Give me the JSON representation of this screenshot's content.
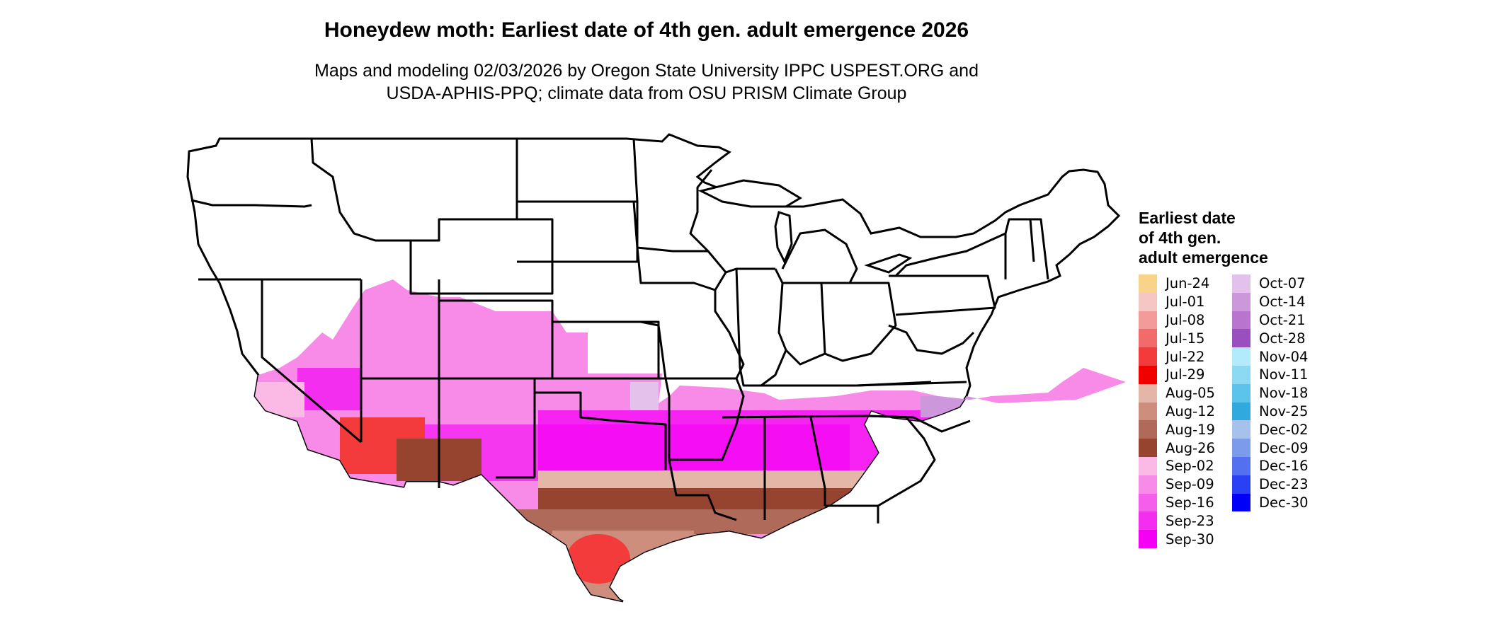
{
  "title": "Honeydew moth: Earliest date of 4th gen. adult emergence 2026",
  "subtitle_line1": "Maps and modeling 02/03/2026 by Oregon State University IPPC USPEST.ORG and",
  "subtitle_line2": "USDA-APHIS-PPQ; climate data from OSU PRISM Climate Group",
  "legend": {
    "title_lines": [
      "Earliest date",
      "of 4th gen.",
      "adult emergence"
    ],
    "column1": [
      {
        "label": "Jun-24",
        "color": "#FAD38A"
      },
      {
        "label": "Jul-01",
        "color": "#F4C6C4"
      },
      {
        "label": "Jul-08",
        "color": "#F39B9B"
      },
      {
        "label": "Jul-15",
        "color": "#F26A6A"
      },
      {
        "label": "Jul-22",
        "color": "#F33B3B"
      },
      {
        "label": "Jul-29",
        "color": "#F20000"
      },
      {
        "label": "Aug-05",
        "color": "#E4B6A8"
      },
      {
        "label": "Aug-12",
        "color": "#CD8E7E"
      },
      {
        "label": "Aug-19",
        "color": "#B06A5A"
      },
      {
        "label": "Aug-26",
        "color": "#96432F"
      },
      {
        "label": "Sep-02",
        "color": "#FBB9E6"
      },
      {
        "label": "Sep-09",
        "color": "#F88BE8"
      },
      {
        "label": "Sep-16",
        "color": "#F55DEB"
      },
      {
        "label": "Sep-23",
        "color": "#F42EEF"
      },
      {
        "label": "Sep-30",
        "color": "#F500F5"
      }
    ],
    "column2": [
      {
        "label": "Oct-07",
        "color": "#E2C1EA"
      },
      {
        "label": "Oct-14",
        "color": "#CD98DB"
      },
      {
        "label": "Oct-21",
        "color": "#B874CE"
      },
      {
        "label": "Oct-28",
        "color": "#9A4FBE"
      },
      {
        "label": "Nov-04",
        "color": "#B2EBFC"
      },
      {
        "label": "Nov-11",
        "color": "#8BD9F3"
      },
      {
        "label": "Nov-18",
        "color": "#5CC4EB"
      },
      {
        "label": "Nov-25",
        "color": "#2FA9DE"
      },
      {
        "label": "Dec-02",
        "color": "#A7C2EA"
      },
      {
        "label": "Dec-09",
        "color": "#7C9BEA"
      },
      {
        "label": "Dec-16",
        "color": "#5370F0"
      },
      {
        "label": "Dec-23",
        "color": "#2A40F4"
      },
      {
        "label": "Dec-30",
        "color": "#0000F8"
      }
    ]
  }
}
